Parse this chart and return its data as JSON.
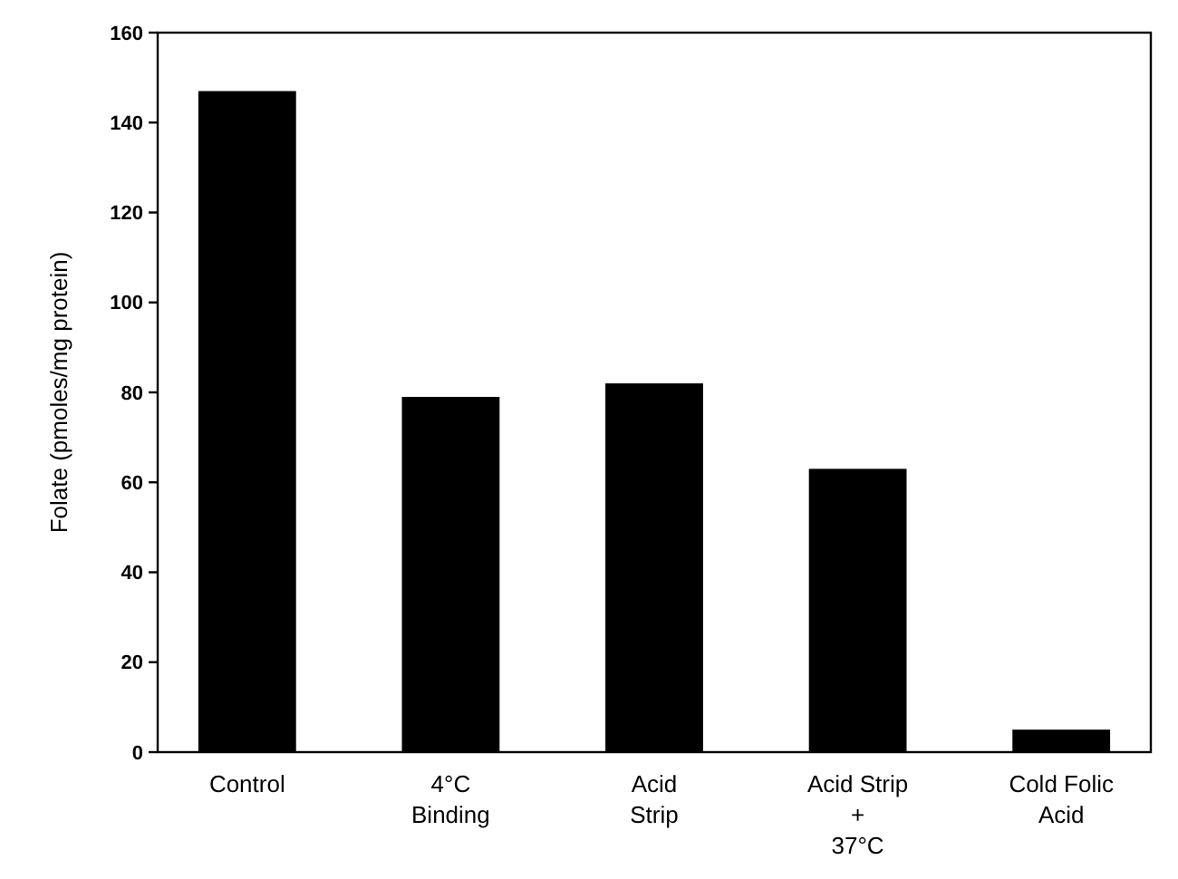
{
  "chart_data": {
    "type": "bar",
    "ylabel": "Folate (pmoles/mg protein)",
    "categories": [
      "Control",
      "4°C\nBinding",
      "Acid\nStrip",
      "Acid Strip\n+\n37°C",
      "Cold Folic\nAcid"
    ],
    "values": [
      147,
      79,
      82,
      63,
      5
    ],
    "color": "#000000",
    "ylim": [
      0,
      160
    ],
    "yticks": [
      0,
      20,
      40,
      60,
      80,
      100,
      120,
      140,
      160
    ],
    "grid": false
  }
}
